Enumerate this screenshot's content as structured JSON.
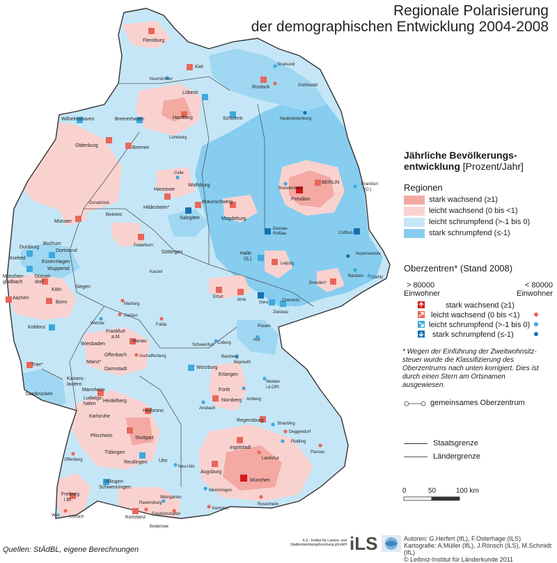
{
  "title": {
    "line1": "Regionale Polarisierung",
    "line2": "der demographischen Entwicklung 2004-2008"
  },
  "legend": {
    "heading": "Jährliche Bevölkerungs-",
    "heading2": "entwicklung",
    "heading_unit": "[Prozent/Jahr]",
    "regions_title": "Regionen",
    "regions": [
      {
        "label": "stark wachsend (≥1)",
        "color": "#f4a9a3"
      },
      {
        "label": "leicht wachsend (0 bis <1)",
        "color": "#f9d2d0"
      },
      {
        "label": "leicht schrumpfend (>-1 bis 0)",
        "color": "#c5e6f6"
      },
      {
        "label": "stark schrumpfend (≤-1)",
        "color": "#86cdef"
      }
    ],
    "centers_title": "Oberzentren* (Stand 2008)",
    "col_large": "> 80000",
    "col_large2": "Einwohner",
    "col_small": "< 80000",
    "col_small2": "Einwohner",
    "centers": [
      {
        "label": "stark wachsend (≥1)",
        "icon": "arrow-up-icon",
        "color": "#d7191c"
      },
      {
        "label": "leicht wachsend (0 bis <1)",
        "icon": "arrow-up-right-icon",
        "color": "#e8665a"
      },
      {
        "label": "leicht schrumpfend (>-1 bis 0)",
        "icon": "arrow-down-right-icon",
        "color": "#3ea9dd"
      },
      {
        "label": "stark schrumpfend (≤-1)",
        "icon": "arrow-down-icon",
        "color": "#1570b0"
      }
    ],
    "note": "* Wegen der Einführung der Zweitwohnsitz- steuer wurde die Klassifizierung des Oberzentrums nach unten korrigiert. Dies ist durch einen Stern am Ortsnamen ausgewiesen.",
    "shared_center": "gemeinsames Oberzentrum",
    "state_border": "Staatsgrenze",
    "land_border": "Ländergrenze",
    "scale_labels": [
      "0",
      "50",
      "100 km"
    ]
  },
  "footer": {
    "sources": "Quellen: StÄdBL, eigene Berechnungen",
    "ils_name": "ILS - Institut für Landes- und Stadtentwicklungsforschung gGmbH",
    "ils_logo": "iLS",
    "authors": "Autoren: G.Herfert (IfL), F.Osterhage (ILS)",
    "cartography": "Kartografie: A.Müller (IfL), J.Rönsch (ILS), M.Schmidt (IfL)",
    "copyright": "© Leibniz-Institut für Länderkunde 2011"
  },
  "cities": [
    {
      "name": "Flensburg",
      "type": "leicht wachsend",
      "big": true
    },
    {
      "name": "Kiel",
      "type": "leicht wachsend",
      "big": true
    },
    {
      "name": "Neumünster",
      "type": "leicht schrumpfend",
      "big": false
    },
    {
      "name": "Lübeck",
      "type": "leicht schrumpfend",
      "big": true
    },
    {
      "name": "Rostock",
      "type": "leicht wachsend",
      "big": true
    },
    {
      "name": "Stralsund",
      "type": "leicht schrumpfend",
      "big": false
    },
    {
      "name": "Greifswald",
      "type": "leicht wachsend",
      "big": false
    },
    {
      "name": "Neubrandenburg",
      "type": "stark schrumpfend",
      "big": false
    },
    {
      "name": "Schwerin",
      "type": "leicht schrumpfend",
      "big": true
    },
    {
      "name": "Hamburg",
      "type": "leicht wachsend",
      "big": true
    },
    {
      "name": "Wilhelmshaven",
      "type": "leicht schrumpfend",
      "big": true
    },
    {
      "name": "Bremerhaven",
      "type": "leicht schrumpfend",
      "big": true
    },
    {
      "name": "Bremen",
      "type": "leicht wachsend",
      "big": true
    },
    {
      "name": "Oldenburg",
      "type": "leicht wachsend",
      "big": true
    },
    {
      "name": "Lüneburg",
      "type": "leicht wachsend",
      "big": false
    },
    {
      "name": "BERLIN",
      "type": "leicht wachsend",
      "big": true
    },
    {
      "name": "Potsdam",
      "type": "stark wachsend",
      "big": true
    },
    {
      "name": "Brandenburg",
      "type": "leicht schrumpfend",
      "big": false
    },
    {
      "name": "Frankfurt (O.)",
      "type": "leicht schrumpfend",
      "big": false
    },
    {
      "name": "Cottbus",
      "type": "stark schrumpfend",
      "big": true
    },
    {
      "name": "Celle",
      "type": "leicht schrumpfend",
      "big": false
    },
    {
      "name": "Wolfsburg",
      "type": "leicht schrumpfend",
      "big": true
    },
    {
      "name": "Hannover",
      "type": "leicht wachsend",
      "big": true
    },
    {
      "name": "Braunschweig",
      "type": "leicht wachsend",
      "big": true
    },
    {
      "name": "Hildesheim*",
      "type": "leicht schrumpfend",
      "big": true
    },
    {
      "name": "Salzgitter",
      "type": "stark schrumpfend",
      "big": true
    },
    {
      "name": "Magdeburg",
      "type": "leicht wachsend",
      "big": true
    },
    {
      "name": "Dessau-Roßlau",
      "type": "stark schrumpfend",
      "big": true
    },
    {
      "name": "Osnabrück",
      "type": "leicht schrumpfend",
      "big": true
    },
    {
      "name": "Münster",
      "type": "leicht wachsend",
      "big": true
    },
    {
      "name": "Bielefeld",
      "type": "leicht schrumpfend",
      "big": true
    },
    {
      "name": "Paderborn",
      "type": "leicht wachsend",
      "big": true
    },
    {
      "name": "Göttingen",
      "type": "leicht schrumpfend",
      "big": true
    },
    {
      "name": "Kassel",
      "type": "leicht schrumpfend",
      "big": true
    },
    {
      "name": "Halle (S.)",
      "type": "leicht schrumpfend",
      "big": true
    },
    {
      "name": "Leipzig",
      "type": "leicht wachsend",
      "big": true
    },
    {
      "name": "Hoyerswerda",
      "type": "stark schrumpfend",
      "big": false
    },
    {
      "name": "Bautzen",
      "type": "leicht schrumpfend",
      "big": false
    },
    {
      "name": "Görlitz",
      "type": "leicht schrumpfend",
      "big": false
    },
    {
      "name": "Dresden*",
      "type": "leicht wachsend",
      "big": true
    },
    {
      "name": "Chemnitz",
      "type": "leicht schrumpfend",
      "big": true
    },
    {
      "name": "Zwickau",
      "type": "leicht schrumpfend",
      "big": true
    },
    {
      "name": "Plauen",
      "type": "leicht schrumpfend",
      "big": false
    },
    {
      "name": "Gera",
      "type": "stark schrumpfend",
      "big": true
    },
    {
      "name": "Jena",
      "type": "leicht wachsend",
      "big": true
    },
    {
      "name": "Erfurt",
      "type": "leicht wachsend",
      "big": true
    },
    {
      "name": "Duisburg",
      "type": "leicht schrumpfend",
      "big": true
    },
    {
      "name": "Bochum",
      "type": "leicht schrumpfend",
      "big": true
    },
    {
      "name": "Dortmund",
      "type": "leicht schrumpfend",
      "big": true
    },
    {
      "name": "Krefeld",
      "type": "leicht schrumpfend",
      "big": true
    },
    {
      "name": "Essen",
      "type": "leicht schrumpfend",
      "big": true
    },
    {
      "name": "Hagen",
      "type": "leicht schrumpfend",
      "big": true
    },
    {
      "name": "Wuppertal",
      "type": "leicht schrumpfend",
      "big": true
    },
    {
      "name": "Mönchen-gladbach",
      "type": "leicht schrumpfend",
      "big": true
    },
    {
      "name": "Düssel-dorf",
      "type": "leicht wachsend",
      "big": true
    },
    {
      "name": "Köln",
      "type": "leicht wachsend",
      "big": true
    },
    {
      "name": "Aachen",
      "type": "leicht wachsend",
      "big": true
    },
    {
      "name": "Bonn",
      "type": "leicht wachsend",
      "big": true
    },
    {
      "name": "Siegen",
      "type": "leicht schrumpfend",
      "big": true
    },
    {
      "name": "Koblenz",
      "type": "leicht schrumpfend",
      "big": true
    },
    {
      "name": "Marburg",
      "type": "leicht wachsend",
      "big": false
    },
    {
      "name": "Gießen",
      "type": "leicht wachsend",
      "big": false
    },
    {
      "name": "Wetzlar",
      "type": "leicht schrumpfend",
      "big": false
    },
    {
      "name": "Fulda",
      "type": "leicht wachsend",
      "big": false
    },
    {
      "name": "Frankfurt a.M.",
      "type": "leicht wachsend",
      "big": true
    },
    {
      "name": "Hanau",
      "type": "leicht schrumpfend",
      "big": true
    },
    {
      "name": "Wiesbaden",
      "type": "leicht wachsend",
      "big": true
    },
    {
      "name": "Offenbach",
      "type": "leicht wachsend",
      "big": true
    },
    {
      "name": "Mainz*",
      "type": "leicht wachsend",
      "big": true
    },
    {
      "name": "Darmstadt",
      "type": "leicht wachsend",
      "big": true
    },
    {
      "name": "Aschaffenburg",
      "type": "leicht wachsend",
      "big": false
    },
    {
      "name": "Trier*",
      "type": "leicht wachsend",
      "big": true
    },
    {
      "name": "Kaisers-lautern",
      "type": "leicht schrumpfend",
      "big": true
    },
    {
      "name": "Saarbrücken",
      "type": "leicht schrumpfend",
      "big": true
    },
    {
      "name": "Mannheim",
      "type": "leicht wachsend",
      "big": true
    },
    {
      "name": "Ludwigs-hafen",
      "type": "leicht wachsend",
      "big": true
    },
    {
      "name": "Heidelberg",
      "type": "leicht wachsend",
      "big": true
    },
    {
      "name": "Würzburg",
      "type": "leicht schrumpfend",
      "big": true
    },
    {
      "name": "Schweinfurt",
      "type": "leicht schrumpfend",
      "big": false
    },
    {
      "name": "Coburg",
      "type": "leicht schrumpfend",
      "big": false
    },
    {
      "name": "Hof",
      "type": "leicht schrumpfend",
      "big": false
    },
    {
      "name": "Bamberg",
      "type": "leicht schrumpfend",
      "big": false
    },
    {
      "name": "Bayreuth",
      "type": "leicht schrumpfend",
      "big": false
    },
    {
      "name": "Erlangen",
      "type": "leicht wachsend",
      "big": true
    },
    {
      "name": "Fürth",
      "type": "leicht wachsend",
      "big": true
    },
    {
      "name": "Nürnberg",
      "type": "leicht wachsend",
      "big": true
    },
    {
      "name": "Weiden i.d.OPf.",
      "type": "leicht schrumpfend",
      "big": false
    },
    {
      "name": "Amberg",
      "type": "leicht schrumpfend",
      "big": false
    },
    {
      "name": "Ansbach",
      "type": "leicht schrumpfend",
      "big": false
    },
    {
      "name": "Regensburg",
      "type": "leicht wachsend",
      "big": true
    },
    {
      "name": "Straubing",
      "type": "leicht schrumpfend",
      "big": false
    },
    {
      "name": "Deggendorf",
      "type": "leicht wachsend",
      "big": false
    },
    {
      "name": "Plattling",
      "type": "leicht schrumpfend",
      "big": false
    },
    {
      "name": "Passau",
      "type": "leicht wachsend",
      "big": false
    },
    {
      "name": "Landshut",
      "type": "leicht wachsend",
      "big": false
    },
    {
      "name": "Ingolstadt",
      "type": "leicht wachsend",
      "big": true
    },
    {
      "name": "München",
      "type": "stark wachsend",
      "big": true
    },
    {
      "name": "Augsburg",
      "type": "leicht wachsend",
      "big": true
    },
    {
      "name": "Rosenheim",
      "type": "leicht wachsend",
      "big": false
    },
    {
      "name": "Kempten",
      "type": "leicht wachsend",
      "big": false
    },
    {
      "name": "Memmingen",
      "type": "leicht schrumpfend",
      "big": false
    },
    {
      "name": "Ulm",
      "type": "leicht wachsend",
      "big": true
    },
    {
      "name": "Neu-Ulm",
      "type": "leicht schrumpfend",
      "big": false
    },
    {
      "name": "Karlsruhe",
      "type": "leicht wachsend",
      "big": true
    },
    {
      "name": "Heilbronn",
      "type": "leicht wachsend",
      "big": true
    },
    {
      "name": "Pforzheim",
      "type": "leicht wachsend",
      "big": true
    },
    {
      "name": "Stuttgart",
      "type": "leicht wachsend",
      "big": true
    },
    {
      "name": "Tübingen",
      "type": "leicht wachsend",
      "big": true
    },
    {
      "name": "Reutlingen",
      "type": "leicht schrumpfend",
      "big": true
    },
    {
      "name": "Offenburg",
      "type": "leicht wachsend",
      "big": false
    },
    {
      "name": "Freiburg i.Br.",
      "type": "leicht wachsend",
      "big": true
    },
    {
      "name": "Villingen-Schwenningen",
      "type": "leicht schrumpfend",
      "big": true
    },
    {
      "name": "Konstanz",
      "type": "leicht wachsend",
      "big": true
    },
    {
      "name": "Ravensburg",
      "type": "leicht wachsend",
      "big": false
    },
    {
      "name": "Weingarten",
      "type": "leicht schrumpfend",
      "big": false
    },
    {
      "name": "Friedrichshafen",
      "type": "leicht wachsend",
      "big": false
    },
    {
      "name": "Lörrach",
      "type": "leicht wachsend",
      "big": false
    },
    {
      "name": "Weil",
      "type": "leicht wachsend",
      "big": false
    },
    {
      "name": "Bodensee",
      "type": "water",
      "big": false
    }
  ]
}
